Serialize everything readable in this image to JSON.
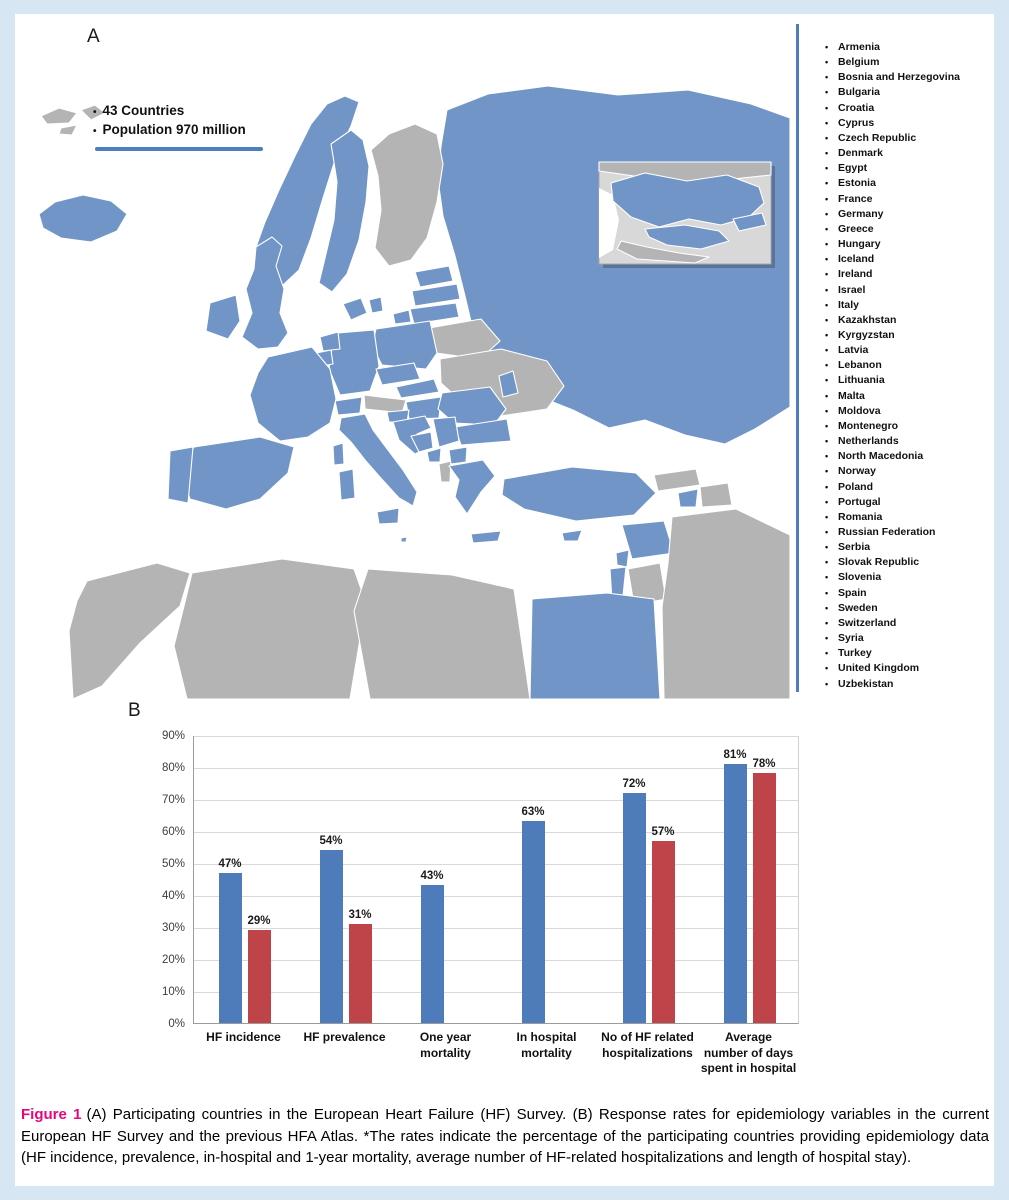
{
  "figure": {
    "background": "#d7e6f3",
    "panel_a_label": "A",
    "panel_b_label": "B"
  },
  "map": {
    "bullet": "•",
    "stats_line1": "43 Countries",
    "stats_line2": "Population 970 million",
    "colors": {
      "participating": "#7095c6",
      "non_participating": "#b4b4b4",
      "inset_background": "#d8d8d8",
      "rule": "#4d7ebd"
    }
  },
  "country_list": [
    "Armenia",
    "Belgium",
    "Bosnia and Herzegovina",
    "Bulgaria",
    "Croatia",
    "Cyprus",
    "Czech Republic",
    "Denmark",
    "Egypt",
    "Estonia",
    "France",
    "Germany",
    "Greece",
    "Hungary",
    "Iceland",
    "Ireland",
    "Israel",
    "Italy",
    "Kazakhstan",
    "Kyrgyzstan",
    "Latvia",
    "Lebanon",
    "Lithuania",
    "Malta",
    "Moldova",
    "Montenegro",
    "Netherlands",
    "North Macedonia",
    "Norway",
    "Poland",
    "Portugal",
    "Romania",
    "Russian Federation",
    "Serbia",
    "Slovak Republic",
    "Slovenia",
    "Spain",
    "Sweden",
    "Switzerland",
    "Syria",
    "Turkey",
    "United Kingdom",
    "Uzbekistan"
  ],
  "chart_data": {
    "type": "bar",
    "categories": [
      [
        "HF incidence"
      ],
      [
        "HF prevalence"
      ],
      [
        "One year",
        "mortality"
      ],
      [
        "In hospital",
        "mortality"
      ],
      [
        "No of HF related",
        "hospitalizations"
      ],
      [
        "Average",
        "number of days",
        "spent in hospital"
      ]
    ],
    "series": [
      {
        "name": "Current European HF Survey",
        "color": "#4e7cbb",
        "values": [
          47,
          54,
          43,
          63,
          72,
          81
        ]
      },
      {
        "name": "Previous HFA Atlas",
        "color": "#bf4449",
        "values": [
          29,
          31,
          null,
          null,
          57,
          78
        ]
      }
    ],
    "ylim": [
      0,
      90
    ],
    "ytick_step": 10,
    "value_suffix": "%",
    "grid": true,
    "legend": "none"
  },
  "caption": {
    "label": "Figure 1",
    "label_color": "#e5067e",
    "body": "(A) Participating countries in the European Heart Failure (HF) Survey. (B) Response rates for epidemiology variables in the current European HF Survey and the previous HFA Atlas. *The rates indicate the percentage of the participating countries providing epidemiology data (HF incidence, prevalence, in-hospital and 1-year mortality, average number of HF-related hospitalizations and length of hospital stay)."
  }
}
